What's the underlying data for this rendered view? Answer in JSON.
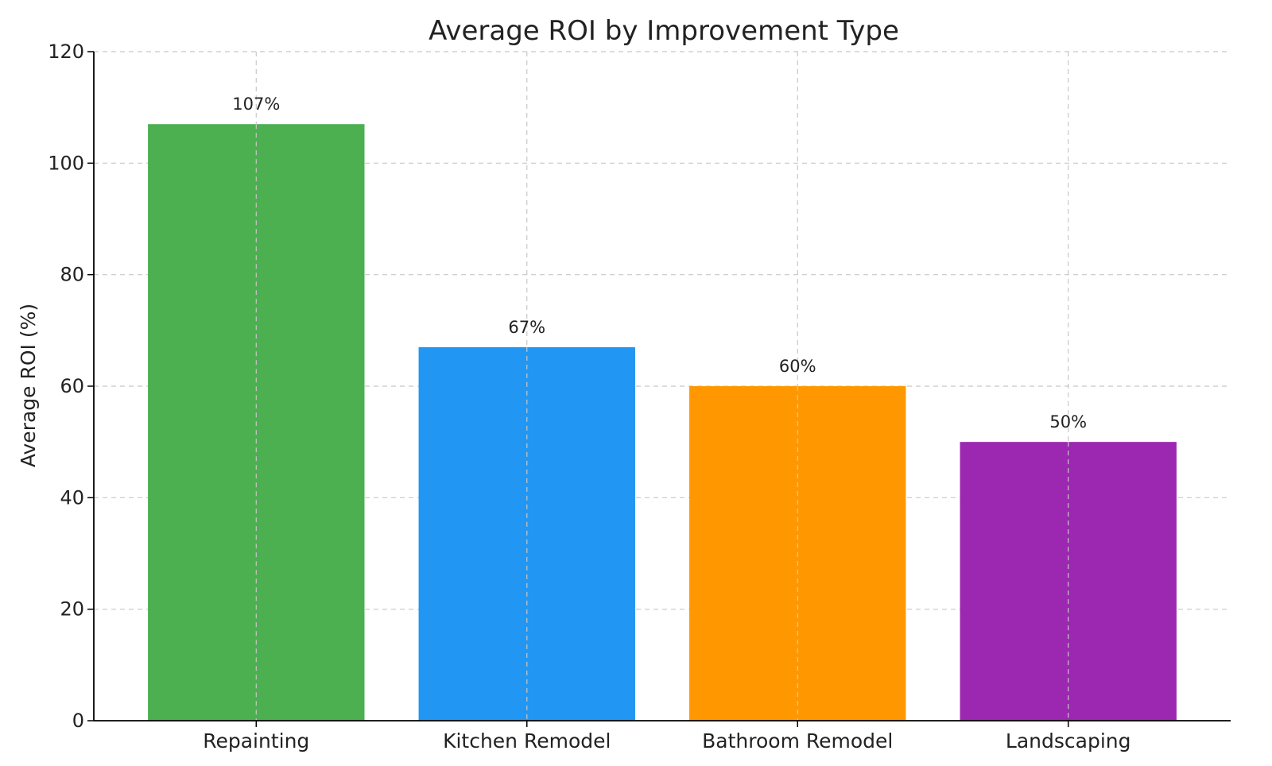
{
  "chart_data": {
    "type": "bar",
    "title": "Average ROI by Improvement Type",
    "xlabel": "",
    "ylabel": "Average ROI (%)",
    "categories": [
      "Repainting",
      "Kitchen Remodel",
      "Bathroom Remodel",
      "Landscaping"
    ],
    "values": [
      107,
      67,
      60,
      50
    ],
    "data_labels": [
      "107%",
      "67%",
      "60%",
      "50%"
    ],
    "colors": [
      "#4caf50",
      "#2196f3",
      "#ff9800",
      "#9c27b0"
    ],
    "ylim": [
      0,
      120
    ],
    "yticks": [
      0,
      20,
      40,
      60,
      80,
      100,
      120
    ],
    "grid": true,
    "legend": "none"
  }
}
